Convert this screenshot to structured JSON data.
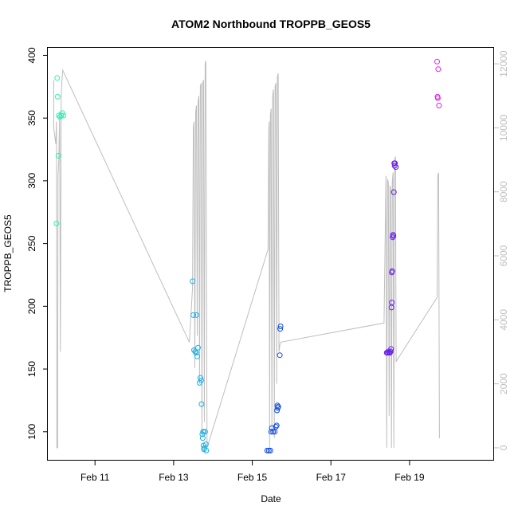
{
  "chart_data": {
    "type": "scatter",
    "title": "ATOM2 Northbound TROPPB_GEOS5",
    "xlabel": "Date",
    "ylabel": "TROPPB_GEOS5",
    "x_unit": "days after Feb 10",
    "xlim": [
      -0.2,
      11.15
    ],
    "ylim": [
      77,
      406
    ],
    "x_ticks": [
      {
        "x": 1,
        "label": "Feb 11"
      },
      {
        "x": 3,
        "label": "Feb 13"
      },
      {
        "x": 5,
        "label": "Feb 15"
      },
      {
        "x": 7,
        "label": "Feb 17"
      },
      {
        "x": 9,
        "label": "Feb 19"
      }
    ],
    "y_ticks": [
      100,
      150,
      200,
      250,
      300,
      350,
      400
    ],
    "y2lim": [
      -400,
      12500
    ],
    "y2_ticks": [
      0,
      2000,
      4000,
      6000,
      8000,
      10000,
      12000
    ],
    "grid": false,
    "legend": "none",
    "colors": {
      "line": "#bebebe",
      "axis": "#000000",
      "right_axis": "#bebebe"
    },
    "points": [
      {
        "x": 0.02,
        "y": 266,
        "color": "#2bf0b4"
      },
      {
        "x": 0.04,
        "y": 382,
        "color": "#2bf0b4"
      },
      {
        "x": 0.05,
        "y": 367,
        "color": "#2bf0b4"
      },
      {
        "x": 0.07,
        "y": 320,
        "color": "#2bf0b4"
      },
      {
        "x": 0.08,
        "y": 352,
        "color": "#2bf0b4"
      },
      {
        "x": 0.11,
        "y": 351,
        "color": "#2bf0b4"
      },
      {
        "x": 0.14,
        "y": 352,
        "color": "#2bf0b4"
      },
      {
        "x": 0.17,
        "y": 354,
        "color": "#2bf0b4"
      },
      {
        "x": 0.2,
        "y": 352,
        "color": "#2bf0b4"
      },
      {
        "x": 3.48,
        "y": 220,
        "color": "#19b0e6"
      },
      {
        "x": 3.5,
        "y": 193,
        "color": "#19b0e6"
      },
      {
        "x": 3.52,
        "y": 165,
        "color": "#19b0e6"
      },
      {
        "x": 3.55,
        "y": 164,
        "color": "#19b0e6"
      },
      {
        "x": 3.57,
        "y": 163,
        "color": "#19b0e6"
      },
      {
        "x": 3.58,
        "y": 193,
        "color": "#19b0e6"
      },
      {
        "x": 3.6,
        "y": 160,
        "color": "#19b0e6"
      },
      {
        "x": 3.62,
        "y": 167,
        "color": "#19b0e6"
      },
      {
        "x": 3.66,
        "y": 139,
        "color": "#19b0e6"
      },
      {
        "x": 3.68,
        "y": 143,
        "color": "#19b0e6"
      },
      {
        "x": 3.7,
        "y": 141,
        "color": "#19b0e6"
      },
      {
        "x": 3.71,
        "y": 122,
        "color": "#19b0e6"
      },
      {
        "x": 3.73,
        "y": 98,
        "color": "#19b0e6"
      },
      {
        "x": 3.74,
        "y": 95,
        "color": "#19b0e6"
      },
      {
        "x": 3.75,
        "y": 100,
        "color": "#19b0e6"
      },
      {
        "x": 3.76,
        "y": 100,
        "color": "#19b0e6"
      },
      {
        "x": 3.76,
        "y": 89,
        "color": "#19b0e6"
      },
      {
        "x": 3.77,
        "y": 86,
        "color": "#19b0e6"
      },
      {
        "x": 3.78,
        "y": 87,
        "color": "#19b0e6"
      },
      {
        "x": 3.8,
        "y": 100,
        "color": "#19b0e6"
      },
      {
        "x": 3.82,
        "y": 90,
        "color": "#19b0e6"
      },
      {
        "x": 3.83,
        "y": 85,
        "color": "#19b0e6"
      },
      {
        "x": 5.38,
        "y": 85,
        "color": "#0f4be6"
      },
      {
        "x": 5.42,
        "y": 85,
        "color": "#0f4be6"
      },
      {
        "x": 5.46,
        "y": 85,
        "color": "#0f4be6"
      },
      {
        "x": 5.48,
        "y": 100,
        "color": "#0f4be6"
      },
      {
        "x": 5.5,
        "y": 103,
        "color": "#0f4be6"
      },
      {
        "x": 5.53,
        "y": 100,
        "color": "#0f4be6"
      },
      {
        "x": 5.57,
        "y": 100,
        "color": "#0f4be6"
      },
      {
        "x": 5.6,
        "y": 104,
        "color": "#0f4be6"
      },
      {
        "x": 5.62,
        "y": 105,
        "color": "#0f4be6"
      },
      {
        "x": 5.63,
        "y": 117,
        "color": "#0f4be6"
      },
      {
        "x": 5.64,
        "y": 121,
        "color": "#0f4be6"
      },
      {
        "x": 5.65,
        "y": 119,
        "color": "#0f4be6"
      },
      {
        "x": 5.66,
        "y": 120,
        "color": "#0f4be6"
      },
      {
        "x": 5.7,
        "y": 161,
        "color": "#0f4be6"
      },
      {
        "x": 5.71,
        "y": 182,
        "color": "#0f4be6"
      },
      {
        "x": 5.72,
        "y": 184,
        "color": "#0f4be6"
      },
      {
        "x": 8.42,
        "y": 163,
        "color": "#6a1ee6"
      },
      {
        "x": 8.44,
        "y": 163,
        "color": "#6a1ee6"
      },
      {
        "x": 8.46,
        "y": 164,
        "color": "#6a1ee6"
      },
      {
        "x": 8.48,
        "y": 163,
        "color": "#6a1ee6"
      },
      {
        "x": 8.5,
        "y": 163,
        "color": "#6a1ee6"
      },
      {
        "x": 8.52,
        "y": 164,
        "color": "#6a1ee6"
      },
      {
        "x": 8.53,
        "y": 166,
        "color": "#6a1ee6"
      },
      {
        "x": 8.54,
        "y": 199,
        "color": "#6a1ee6"
      },
      {
        "x": 8.55,
        "y": 203,
        "color": "#6a1ee6"
      },
      {
        "x": 8.55,
        "y": 227,
        "color": "#6a1ee6"
      },
      {
        "x": 8.56,
        "y": 228,
        "color": "#6a1ee6"
      },
      {
        "x": 8.57,
        "y": 255,
        "color": "#6a1ee6"
      },
      {
        "x": 8.58,
        "y": 257,
        "color": "#6a1ee6"
      },
      {
        "x": 8.59,
        "y": 256,
        "color": "#6a1ee6"
      },
      {
        "x": 8.6,
        "y": 291,
        "color": "#6a1ee6"
      },
      {
        "x": 8.61,
        "y": 314,
        "color": "#6a1ee6"
      },
      {
        "x": 8.62,
        "y": 312,
        "color": "#6a1ee6"
      },
      {
        "x": 8.63,
        "y": 314,
        "color": "#6a1ee6"
      },
      {
        "x": 8.65,
        "y": 311,
        "color": "#6a1ee6"
      },
      {
        "x": 9.7,
        "y": 395,
        "color": "#e61ee6"
      },
      {
        "x": 9.71,
        "y": 367,
        "color": "#e61ee6"
      },
      {
        "x": 9.72,
        "y": 366,
        "color": "#e61ee6"
      },
      {
        "x": 9.73,
        "y": 389,
        "color": "#e61ee6"
      },
      {
        "x": 9.75,
        "y": 360,
        "color": "#e61ee6"
      }
    ],
    "altitude_line": [
      [
        -0.05,
        11500
      ],
      [
        -0.05,
        10000
      ],
      [
        0.0,
        9500
      ],
      [
        0.02,
        10200
      ],
      [
        0.03,
        0
      ],
      [
        0.05,
        0
      ],
      [
        0.06,
        8500
      ],
      [
        0.08,
        9000
      ],
      [
        0.1,
        10500
      ],
      [
        0.12,
        3000
      ],
      [
        0.14,
        11000
      ],
      [
        0.16,
        11500
      ],
      [
        0.18,
        11800
      ],
      [
        3.4,
        3300
      ],
      [
        3.48,
        5000
      ],
      [
        3.5,
        10000
      ],
      [
        3.52,
        10200
      ],
      [
        3.54,
        2500
      ],
      [
        3.56,
        10500
      ],
      [
        3.58,
        10700
      ],
      [
        3.6,
        3500
      ],
      [
        3.62,
        10800
      ],
      [
        3.64,
        11000
      ],
      [
        3.66,
        2000
      ],
      [
        3.68,
        11300
      ],
      [
        3.7,
        11400
      ],
      [
        3.72,
        400
      ],
      [
        3.74,
        11400
      ],
      [
        3.76,
        11500
      ],
      [
        3.78,
        800
      ],
      [
        3.8,
        12000
      ],
      [
        3.82,
        12100
      ],
      [
        3.85,
        0
      ],
      [
        5.4,
        6200
      ],
      [
        5.42,
        10000
      ],
      [
        5.43,
        10200
      ],
      [
        5.44,
        0
      ],
      [
        5.46,
        10400
      ],
      [
        5.48,
        10600
      ],
      [
        5.5,
        500
      ],
      [
        5.52,
        11000
      ],
      [
        5.54,
        11200
      ],
      [
        5.56,
        300
      ],
      [
        5.58,
        11300
      ],
      [
        5.6,
        11400
      ],
      [
        5.62,
        2000
      ],
      [
        5.64,
        11600
      ],
      [
        5.66,
        11700
      ],
      [
        5.68,
        3000
      ],
      [
        5.7,
        3200
      ],
      [
        5.72,
        3300
      ],
      [
        8.35,
        3900
      ],
      [
        8.4,
        8500
      ],
      [
        8.42,
        0
      ],
      [
        8.44,
        8400
      ],
      [
        8.46,
        8300
      ],
      [
        8.48,
        1000
      ],
      [
        8.5,
        8200
      ],
      [
        8.52,
        8100
      ],
      [
        8.54,
        0
      ],
      [
        8.56,
        8300
      ],
      [
        8.58,
        8600
      ],
      [
        8.6,
        0
      ],
      [
        8.62,
        9000
      ],
      [
        8.64,
        9100
      ],
      [
        8.66,
        2700
      ],
      [
        9.7,
        4700
      ],
      [
        9.72,
        8500
      ],
      [
        9.74,
        8600
      ],
      [
        9.76,
        300
      ]
    ]
  }
}
